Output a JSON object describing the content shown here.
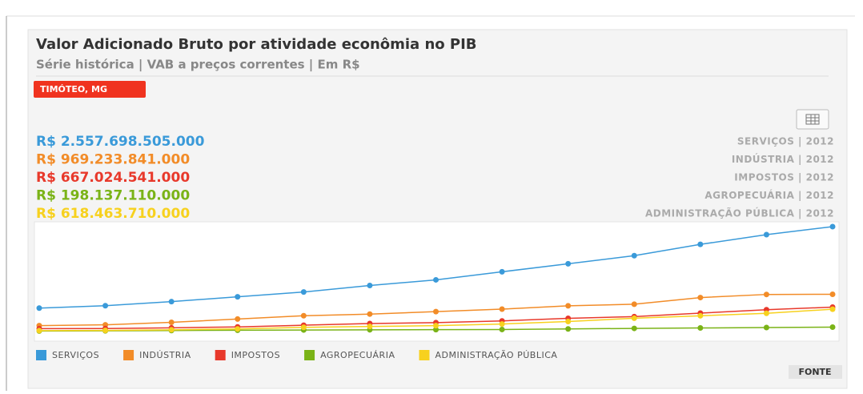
{
  "chart_data": {
    "type": "line",
    "title": "Valor Adicionado Bruto por atividade econômia no PIB",
    "subtitle": "Série histórica | VAB a preços correntes | Em R$",
    "badge": "TIMÓTEO, MG",
    "button": "FONTE",
    "summary": [
      {
        "value_label": "R$ 2.557.698.505.000",
        "label": "SERVIÇOS | 2012"
      },
      {
        "value_label": "R$ 969.233.841.000",
        "label": "INDÚSTRIA | 2012"
      },
      {
        "value_label": "R$ 667.024.541.000",
        "label": "IMPOSTOS | 2012"
      },
      {
        "value_label": "R$ 198.137.110.000",
        "label": "AGROPECUÁRIA | 2012"
      },
      {
        "value_label": "R$ 618.463.710.000",
        "label": "ADMINISTRAÇÃO PÚBLICA | 2012"
      }
    ],
    "categories": [
      null,
      null,
      null,
      null,
      null,
      null,
      null,
      null,
      null,
      null,
      null,
      null,
      null
    ],
    "series": [
      {
        "name": "SERVIÇOS",
        "color": "#3a9ad9",
        "values": [
          644000000000,
          701000000000,
          796000000000,
          910000000000,
          1023000000000,
          1175000000000,
          1308000000000,
          1497000000000,
          1686000000000,
          1876000000000,
          2141000000000,
          2369000000000,
          2557698505000
        ]
      },
      {
        "name": "INDÚSTRIA",
        "color": "#f28c28",
        "values": [
          233000000000,
          252000000000,
          310000000000,
          388000000000,
          465000000000,
          504000000000,
          562000000000,
          620000000000,
          698000000000,
          736000000000,
          892000000000,
          965000000000,
          969233841000
        ]
      },
      {
        "name": "IMPOSTOS",
        "color": "#e8392b",
        "values": [
          162000000000,
          165000000000,
          182000000000,
          202000000000,
          243000000000,
          283000000000,
          303000000000,
          344000000000,
          404000000000,
          445000000000,
          526000000000,
          606000000000,
          667024541000
        ]
      },
      {
        "name": "AGROPECUÁRIA",
        "color": "#7ab317",
        "values": [
          105000000000,
          110000000000,
          118000000000,
          125000000000,
          130000000000,
          135000000000,
          138000000000,
          142000000000,
          155000000000,
          168000000000,
          178000000000,
          188000000000,
          198137110000
        ]
      },
      {
        "name": "ADMINISTRAÇÃO PÚBLICA",
        "color": "#f7d11e",
        "values": [
          116000000000,
          120000000000,
          135000000000,
          155000000000,
          193000000000,
          213000000000,
          232000000000,
          271000000000,
          329000000000,
          406000000000,
          464000000000,
          522000000000,
          618463710000
        ]
      }
    ]
  }
}
